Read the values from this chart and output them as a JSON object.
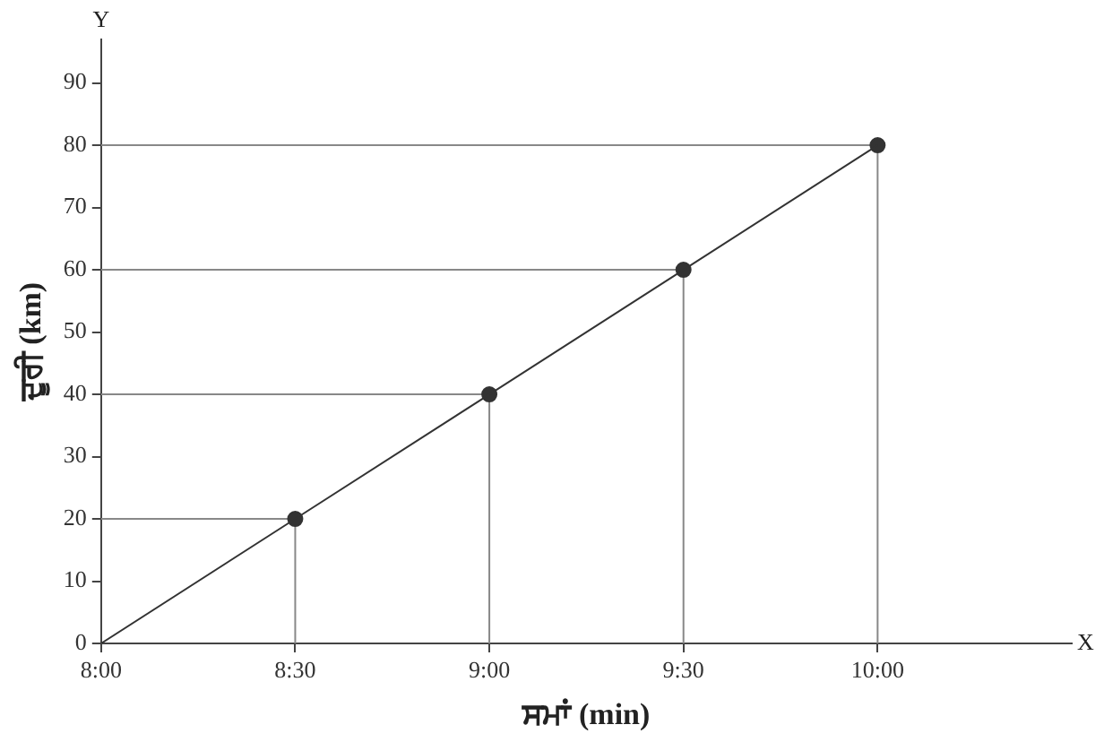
{
  "chart_data": {
    "type": "line",
    "xlabel": "ਸਮਾਂ (min)",
    "ylabel": "ਦੂਰੀ (km)",
    "x": [
      8,
      8.5,
      9,
      9.5,
      10
    ],
    "series": [
      {
        "color": "#333333",
        "values": [
          0,
          20,
          40,
          60,
          80
        ]
      },
      {
        "type": "scatter",
        "color": "#333333",
        "x": [
          8.5,
          9,
          9.5,
          10
        ],
        "values": [
          20,
          40,
          60,
          80
        ]
      },
      {
        "color": "#888888",
        "x": [
          8,
          8.5,
          8.5
        ],
        "values": [
          20,
          20,
          0
        ]
      },
      {
        "color": "#888888",
        "x": [
          8,
          9,
          9
        ],
        "values": [
          40,
          40,
          0
        ]
      },
      {
        "color": "#888888",
        "x": [
          8,
          9.5,
          9.5
        ],
        "values": [
          60,
          60,
          0
        ]
      },
      {
        "color": "#888888",
        "x": [
          8,
          10,
          10
        ],
        "values": [
          80,
          80,
          0
        ]
      }
    ],
    "xlim": [
      8,
      10.5
    ],
    "xticks": [
      {
        "value": 8,
        "label": "8:00"
      },
      {
        "value": 8.5,
        "label": "8:30"
      },
      {
        "value": 9,
        "label": "9:00"
      },
      {
        "value": 9.5,
        "label": "9:30"
      },
      {
        "value": 10,
        "label": "10:00"
      }
    ],
    "ylim": [
      0,
      97
    ],
    "yticks": [
      0,
      10,
      20,
      30,
      40,
      50,
      60,
      70,
      80,
      90
    ],
    "annotations": [
      "X",
      "Y"
    ],
    "grid": false,
    "legend": false,
    "line_style": "solid"
  }
}
